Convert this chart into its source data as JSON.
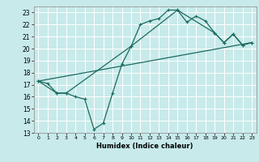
{
  "xlabel": "Humidex (Indice chaleur)",
  "background_color": "#c8eaea",
  "grid_color": "#ffffff",
  "line_color": "#1a6b5e",
  "xlim": [
    -0.5,
    23.5
  ],
  "ylim": [
    13,
    23.5
  ],
  "yticks": [
    13,
    14,
    15,
    16,
    17,
    18,
    19,
    20,
    21,
    22,
    23
  ],
  "xticks": [
    0,
    1,
    2,
    3,
    4,
    5,
    6,
    7,
    8,
    9,
    10,
    11,
    12,
    13,
    14,
    15,
    16,
    17,
    18,
    19,
    20,
    21,
    22,
    23
  ],
  "line1_x": [
    0,
    1,
    2,
    3,
    4,
    5,
    6,
    7,
    8,
    9,
    10,
    11,
    12,
    13,
    14,
    15,
    16,
    17,
    18,
    19,
    20,
    21,
    22,
    23
  ],
  "line1_y": [
    17.3,
    17.1,
    16.3,
    16.3,
    16.0,
    15.8,
    13.3,
    13.8,
    16.3,
    18.7,
    20.2,
    22.0,
    22.3,
    22.5,
    23.2,
    23.2,
    22.2,
    22.7,
    22.3,
    21.3,
    20.5,
    21.2,
    20.3,
    20.5
  ],
  "line2_x": [
    0,
    2,
    3,
    10,
    15,
    19,
    20,
    21,
    22,
    23
  ],
  "line2_y": [
    17.3,
    16.3,
    16.3,
    20.2,
    23.2,
    21.3,
    20.5,
    21.2,
    20.3,
    20.5
  ],
  "line3_x": [
    0,
    23
  ],
  "line3_y": [
    17.3,
    20.5
  ]
}
